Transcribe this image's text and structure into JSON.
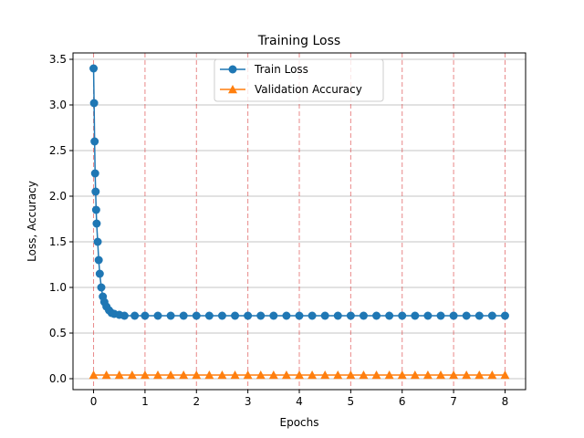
{
  "chart_data": {
    "type": "line",
    "title": "Training Loss",
    "xlabel": "Epochs",
    "ylabel": "Loss, Accuracy",
    "xlim": [
      -0.4,
      8.4
    ],
    "ylim": [
      -0.12,
      3.57
    ],
    "x_ticks": [
      "0",
      "1",
      "2",
      "3",
      "4",
      "5",
      "6",
      "7",
      "8"
    ],
    "x_tick_values": [
      0,
      1,
      2,
      3,
      4,
      5,
      6,
      7,
      8
    ],
    "y_ticks": [
      "0.0",
      "0.5",
      "1.0",
      "1.5",
      "2.0",
      "2.5",
      "3.0",
      "3.5"
    ],
    "y_tick_values": [
      0.0,
      0.5,
      1.0,
      1.5,
      2.0,
      2.5,
      3.0,
      3.5
    ],
    "grid": "horizontal",
    "epoch_markers": [
      0,
      1,
      2,
      3,
      4,
      5,
      6,
      7,
      8
    ],
    "legend_position": "upper-center",
    "series": [
      {
        "name": "Train Loss",
        "color": "#1f77b4",
        "marker": "circle",
        "x": [
          0.0,
          0.01,
          0.02,
          0.03,
          0.04,
          0.05,
          0.06,
          0.08,
          0.1,
          0.12,
          0.15,
          0.18,
          0.21,
          0.25,
          0.3,
          0.35,
          0.4,
          0.5,
          0.6,
          0.8,
          1.0,
          1.25,
          1.5,
          1.75,
          2.0,
          2.25,
          2.5,
          2.75,
          3.0,
          3.25,
          3.5,
          3.75,
          4.0,
          4.25,
          4.5,
          4.75,
          5.0,
          5.25,
          5.5,
          5.75,
          6.0,
          6.25,
          6.5,
          6.75,
          7.0,
          7.25,
          7.5,
          7.75,
          8.0
        ],
        "y": [
          3.4,
          3.02,
          2.6,
          2.25,
          2.05,
          1.85,
          1.7,
          1.5,
          1.3,
          1.15,
          1.0,
          0.9,
          0.84,
          0.79,
          0.75,
          0.72,
          0.71,
          0.7,
          0.69,
          0.69,
          0.69,
          0.69,
          0.69,
          0.69,
          0.69,
          0.69,
          0.69,
          0.69,
          0.69,
          0.69,
          0.69,
          0.69,
          0.69,
          0.69,
          0.69,
          0.69,
          0.69,
          0.69,
          0.69,
          0.69,
          0.69,
          0.69,
          0.69,
          0.69,
          0.69,
          0.69,
          0.69,
          0.69,
          0.69
        ]
      },
      {
        "name": "Validation Accuracy",
        "color": "#ff7f0e",
        "marker": "triangle",
        "x": [
          0,
          0.25,
          0.5,
          0.75,
          1,
          1.25,
          1.5,
          1.75,
          2,
          2.25,
          2.5,
          2.75,
          3,
          3.25,
          3.5,
          3.75,
          4,
          4.25,
          4.5,
          4.75,
          5,
          5.25,
          5.5,
          5.75,
          6,
          6.25,
          6.5,
          6.75,
          7,
          7.25,
          7.5,
          7.75,
          8
        ],
        "y": [
          0.04,
          0.04,
          0.04,
          0.04,
          0.04,
          0.04,
          0.04,
          0.04,
          0.04,
          0.04,
          0.04,
          0.04,
          0.04,
          0.04,
          0.04,
          0.04,
          0.04,
          0.04,
          0.04,
          0.04,
          0.04,
          0.04,
          0.04,
          0.04,
          0.04,
          0.04,
          0.04,
          0.04,
          0.04,
          0.04,
          0.04,
          0.04,
          0.04
        ]
      }
    ]
  }
}
